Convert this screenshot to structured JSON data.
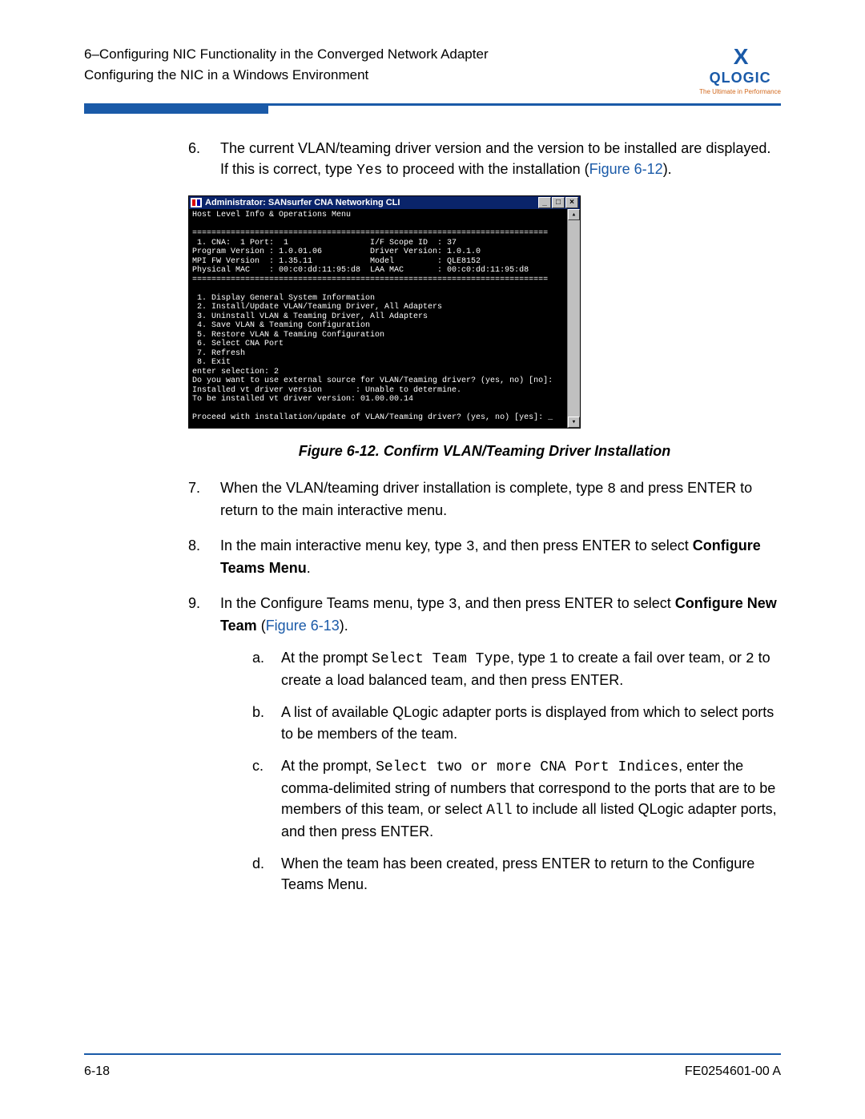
{
  "header": {
    "line1": "6–Configuring NIC Functionality in the Converged Network Adapter",
    "line2": "Configuring the NIC in a Windows Environment"
  },
  "logo": {
    "brand": "QLOGIC",
    "tagline": "The Ultimate in Performance"
  },
  "step6": {
    "num": "6.",
    "text_a": "The current VLAN/teaming driver version and the version to be installed are displayed. If this is correct, type ",
    "code": "Yes",
    "text_b": " to proceed with the installation (",
    "link": "Figure 6-12",
    "text_c": ")."
  },
  "terminal": {
    "title": "Administrator: SANsurfer CNA Networking CLI",
    "body": "Host Level Info & Operations Menu\n\n==========================================================================\n 1. CNA:  1 Port:  1                 I/F Scope ID  : 37\nProgram Version : 1.0.01.06          Driver Version: 1.0.1.0\nMPI FW Version  : 1.35.11            Model         : QLE8152\nPhysical MAC    : 00:c0:dd:11:95:d8  LAA MAC       : 00:c0:dd:11:95:d8\n==========================================================================\n\n 1. Display General System Information\n 2. Install/Update VLAN/Teaming Driver, All Adapters\n 3. Uninstall VLAN & Teaming Driver, All Adapters\n 4. Save VLAN & Teaming Configuration\n 5. Restore VLAN & Teaming Configuration\n 6. Select CNA Port\n 7. Refresh\n 8. Exit\nenter selection: 2\nDo you want to use external source for VLAN/Teaming driver? (yes, no) [no]:\nInstalled vt driver version       : Unable to determine.\nTo be installed vt driver version: 01.00.00.14\n\nProceed with installation/update of VLAN/Teaming driver? (yes, no) [yes]: _"
  },
  "figure_caption": "Figure 6-12. Confirm VLAN/Teaming Driver Installation",
  "step7": {
    "num": "7.",
    "text_a": "When the VLAN/teaming driver installation is complete, type ",
    "code": "8",
    "text_b": " and press ENTER to return to the main interactive menu."
  },
  "step8": {
    "num": "8.",
    "text_a": "In the main interactive menu key, type ",
    "code": "3",
    "text_b": ", and then press ENTER to select ",
    "bold": "Configure Teams Menu",
    "text_c": "."
  },
  "step9": {
    "num": "9.",
    "text_a": "In the Configure Teams menu, type ",
    "code": "3",
    "text_b": ", and then press ENTER to select ",
    "bold": "Configure New Team",
    "text_c": " (",
    "link": "Figure 6-13",
    "text_d": ")."
  },
  "sub_a": {
    "num": "a.",
    "text_a": "At the prompt ",
    "code1": "Select Team Type",
    "text_b": ", type ",
    "code2": "1",
    "text_c": " to create a fail over team, or ",
    "code3": "2",
    "text_d": " to create a load balanced team, and then press ENTER."
  },
  "sub_b": {
    "num": "b.",
    "text": "A list of available QLogic adapter ports is displayed from which to select ports to be members of the team."
  },
  "sub_c": {
    "num": "c.",
    "text_a": "At the prompt, ",
    "code1": "Select two or more CNA Port Indices",
    "text_b": ", enter the comma-delimited string of numbers that correspond to the ports that are to be members of this team, or select ",
    "code2": "All",
    "text_c": " to include all listed QLogic adapter ports, and then press ENTER."
  },
  "sub_d": {
    "num": "d.",
    "text": "When the team has been created, press ENTER to return to the Configure Teams Menu."
  },
  "footer": {
    "page": "6-18",
    "doc": "FE0254601-00 A"
  },
  "colors": {
    "brand_blue": "#1a5aa8",
    "titlebar_blue": "#0a246a",
    "tagline_orange": "#d2691e"
  }
}
